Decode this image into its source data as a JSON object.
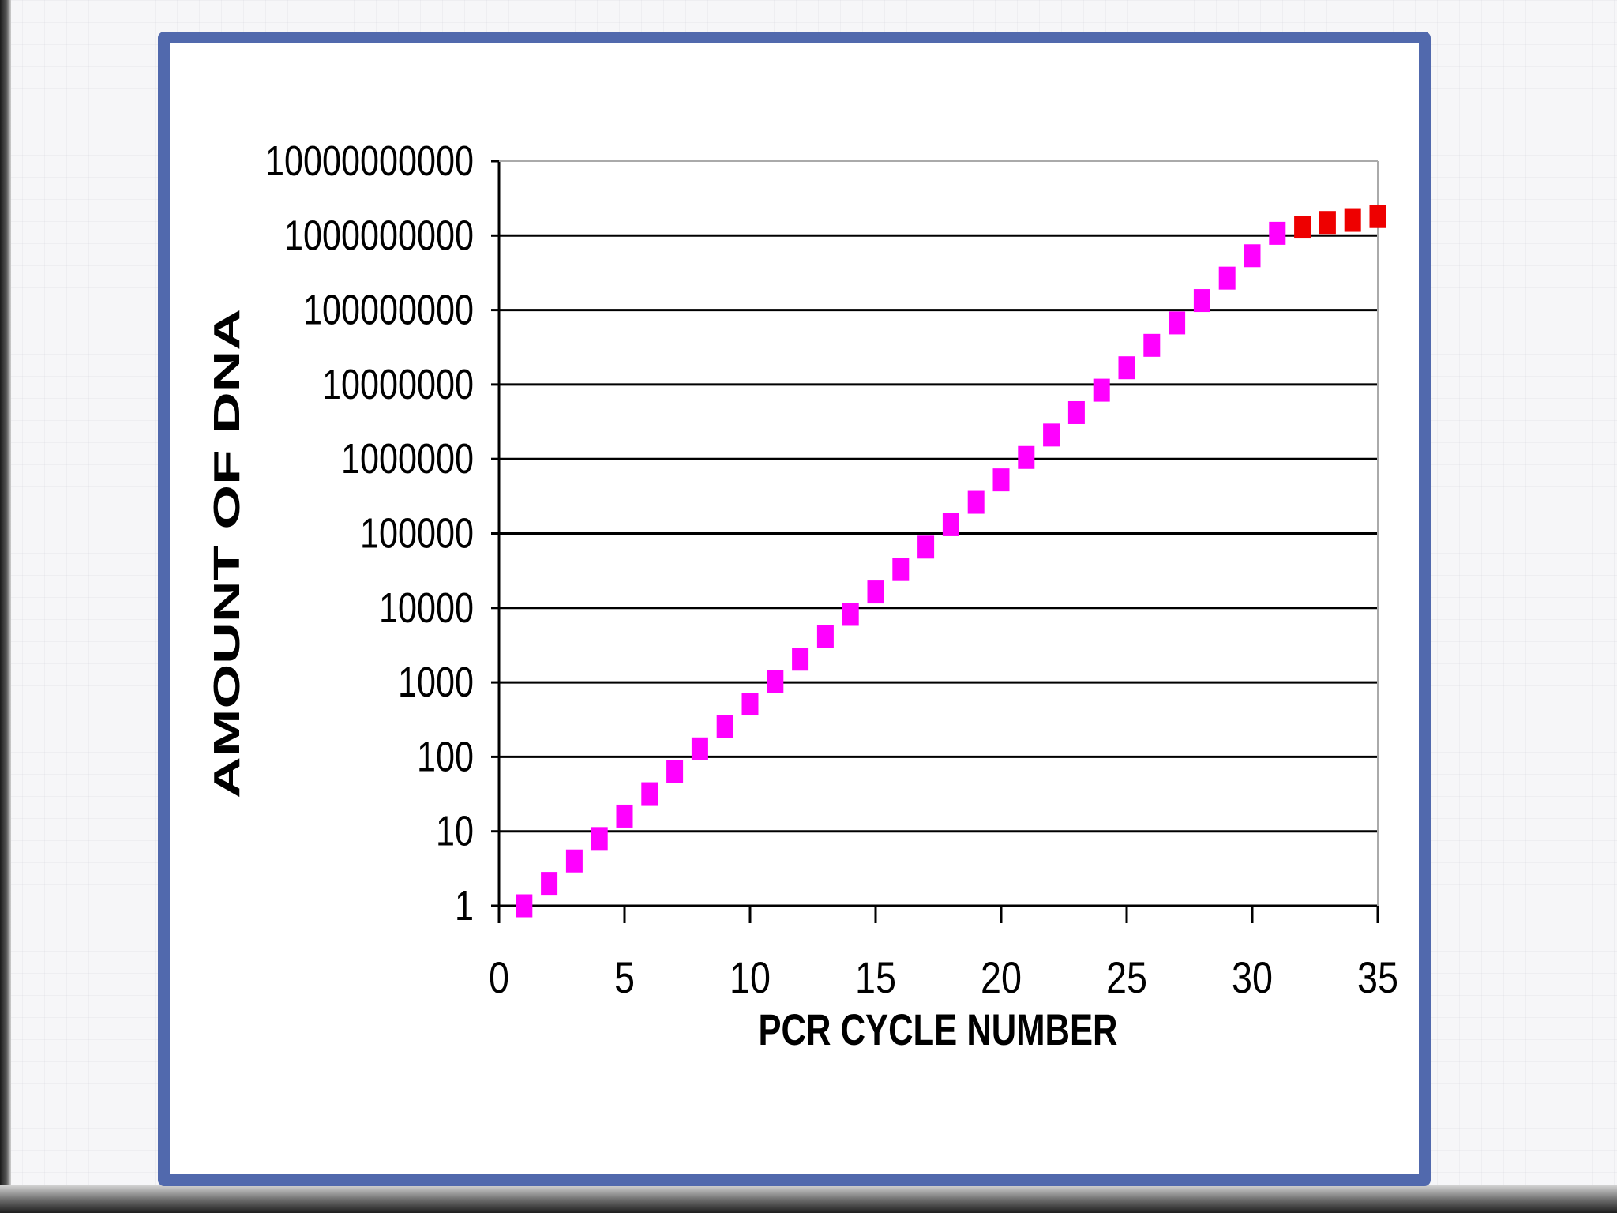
{
  "chart_data": {
    "type": "scatter",
    "xlabel": "PCR CYCLE NUMBER",
    "ylabel": "AMOUNT OF DNA",
    "xlim": [
      0,
      35
    ],
    "ylim": [
      1,
      10000000000
    ],
    "y_scale": "log",
    "grid": "horizontal",
    "x_ticks": [
      "0",
      "5",
      "10",
      "15",
      "20",
      "25",
      "30",
      "35"
    ],
    "y_ticks": [
      "1",
      "10",
      "100",
      "1000",
      "10000",
      "100000",
      "1000000",
      "10000000",
      "100000000",
      "1000000000",
      "10000000000"
    ],
    "series": [
      {
        "color": "#ff00ff",
        "points": [
          {
            "x": 1,
            "y": 1
          },
          {
            "x": 2,
            "y": 2
          },
          {
            "x": 3,
            "y": 4
          },
          {
            "x": 4,
            "y": 8
          },
          {
            "x": 5,
            "y": 16
          },
          {
            "x": 6,
            "y": 32
          },
          {
            "x": 7,
            "y": 64
          },
          {
            "x": 8,
            "y": 128
          },
          {
            "x": 9,
            "y": 256
          },
          {
            "x": 10,
            "y": 512
          },
          {
            "x": 11,
            "y": 1024
          },
          {
            "x": 12,
            "y": 2048
          },
          {
            "x": 13,
            "y": 4096
          },
          {
            "x": 14,
            "y": 8192
          },
          {
            "x": 15,
            "y": 16384
          },
          {
            "x": 16,
            "y": 32768
          },
          {
            "x": 17,
            "y": 65536
          },
          {
            "x": 18,
            "y": 131072
          },
          {
            "x": 19,
            "y": 262144
          },
          {
            "x": 20,
            "y": 524288
          },
          {
            "x": 21,
            "y": 1048576
          },
          {
            "x": 22,
            "y": 2097152
          },
          {
            "x": 23,
            "y": 4194304
          },
          {
            "x": 24,
            "y": 8388608
          },
          {
            "x": 25,
            "y": 16777216
          },
          {
            "x": 26,
            "y": 33554432
          },
          {
            "x": 27,
            "y": 67108864
          },
          {
            "x": 28,
            "y": 134217728
          },
          {
            "x": 29,
            "y": 268435456
          },
          {
            "x": 30,
            "y": 536870912
          },
          {
            "x": 31,
            "y": 1073741824
          }
        ]
      },
      {
        "color": "#ee0000",
        "points": [
          {
            "x": 32,
            "y": 1300000000
          },
          {
            "x": 33,
            "y": 1500000000
          },
          {
            "x": 34,
            "y": 1600000000
          },
          {
            "x": 35,
            "y": 1800000000
          }
        ]
      }
    ]
  }
}
